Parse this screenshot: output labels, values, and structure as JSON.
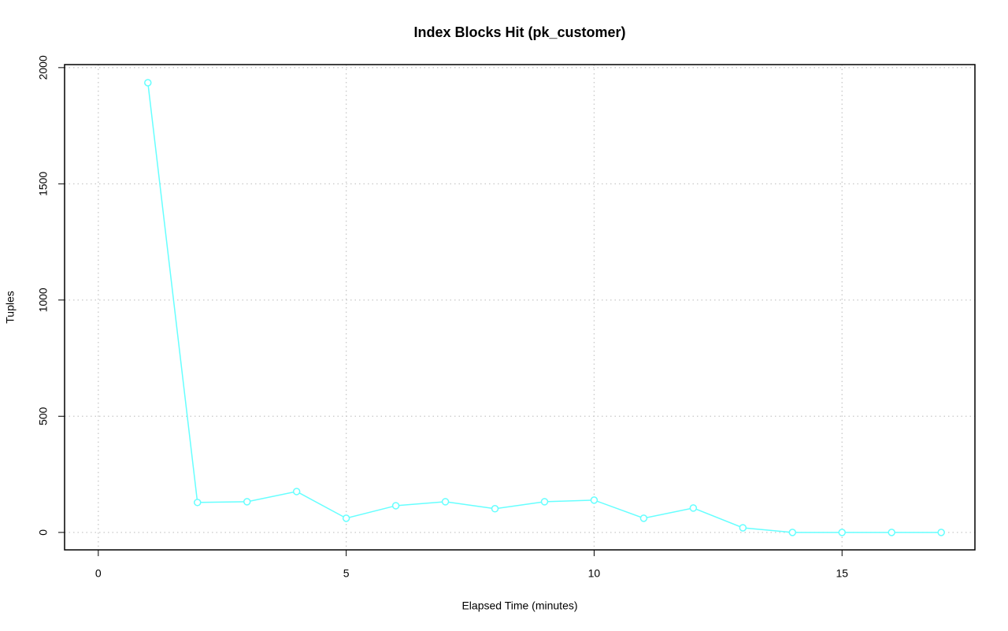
{
  "chart_data": {
    "type": "line",
    "title": "Index Blocks Hit (pk_customer)",
    "x_label": "Elapsed Time (minutes)",
    "y_label": "Tuples",
    "x": [
      1,
      2,
      3,
      4,
      5,
      6,
      7,
      8,
      9,
      10,
      11,
      12,
      13,
      14,
      15,
      16,
      17
    ],
    "series": [
      {
        "name": "pk_customer",
        "color": "#66ffff",
        "values": [
          1935,
          129,
          132,
          176,
          61,
          115,
          132,
          102,
          132,
          139,
          61,
          105,
          20,
          0,
          0,
          0,
          0
        ]
      }
    ],
    "xlim": [
      -0.68,
      17.68
    ],
    "ylim": [
      -75,
      2013
    ],
    "xticks": [
      0,
      5,
      10,
      15
    ],
    "yticks": [
      0,
      500,
      1000,
      1500,
      2000
    ],
    "grid": true
  }
}
